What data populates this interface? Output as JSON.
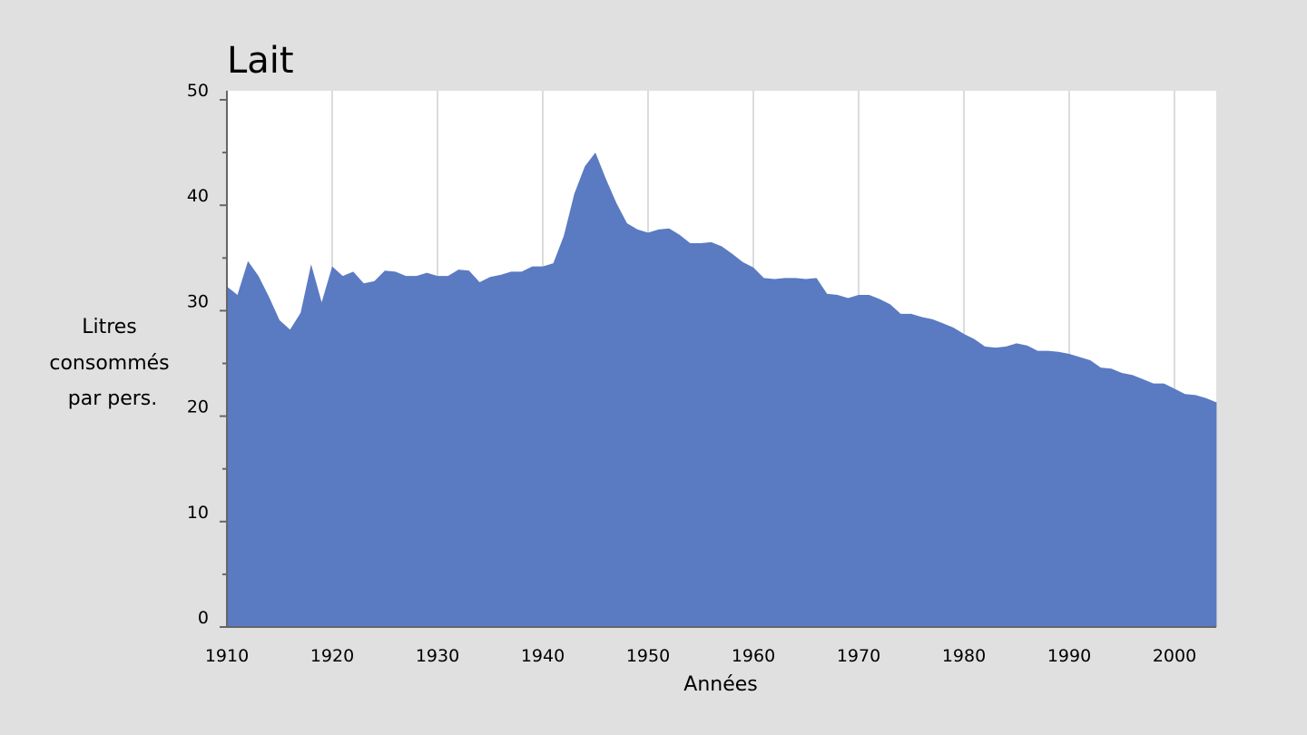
{
  "chart_data": {
    "type": "area",
    "title": "Lait",
    "xlabel": "Années",
    "ylabel_lines": [
      "Litres",
      "consommés",
      "par pers."
    ],
    "xlim": [
      1910,
      2004
    ],
    "ylim": [
      0,
      50
    ],
    "x_ticks": [
      1910,
      1920,
      1930,
      1940,
      1950,
      1960,
      1970,
      1980,
      1990,
      2000
    ],
    "y_ticks": [
      0,
      10,
      20,
      30,
      40,
      50
    ],
    "grid": "vertical",
    "colors": {
      "background": "#e0e0e0",
      "plot": "#ffffff",
      "fill": "#5a7ac2",
      "grid": "#dcdcdc",
      "axis": "#666666"
    },
    "series": [
      {
        "x": [
          1910,
          1911,
          1912,
          1913,
          1914,
          1915,
          1916,
          1917,
          1918,
          1919,
          1920,
          1921,
          1922,
          1923,
          1924,
          1925,
          1926,
          1927,
          1928,
          1929,
          1930,
          1931,
          1932,
          1933,
          1934,
          1935,
          1936,
          1937,
          1938,
          1939,
          1940,
          1941,
          1942,
          1943,
          1944,
          1945,
          1946,
          1947,
          1948,
          1949,
          1950,
          1951,
          1952,
          1953,
          1954,
          1955,
          1956,
          1957,
          1958,
          1959,
          1960,
          1961,
          1962,
          1963,
          1964,
          1965,
          1966,
          1967,
          1968,
          1969,
          1970,
          1971,
          1972,
          1973,
          1974,
          1975,
          1976,
          1977,
          1978,
          1979,
          1980,
          1981,
          1982,
          1983,
          1984,
          1985,
          1986,
          1987,
          1988,
          1989,
          1990,
          1991,
          1992,
          1993,
          1994,
          1995,
          1996,
          1997,
          1998,
          1999,
          2000,
          2001,
          2002,
          2003,
          2004
        ],
        "values": [
          32.3,
          31.5,
          34.7,
          33.3,
          31.3,
          29.1,
          28.2,
          29.8,
          34.4,
          30.8,
          34.2,
          33.3,
          33.7,
          32.6,
          32.8,
          33.8,
          33.7,
          33.3,
          33.3,
          33.6,
          33.3,
          33.3,
          33.9,
          33.8,
          32.7,
          33.2,
          33.4,
          33.7,
          33.7,
          34.2,
          34.2,
          34.5,
          37.1,
          41.1,
          43.7,
          45.0,
          42.5,
          40.2,
          38.3,
          37.7,
          37.4,
          37.7,
          37.8,
          37.2,
          36.4,
          36.4,
          36.5,
          36.1,
          35.4,
          34.6,
          34.1,
          33.1,
          33.0,
          33.1,
          33.1,
          33.0,
          33.1,
          31.6,
          31.5,
          31.2,
          31.5,
          31.5,
          31.1,
          30.6,
          29.7,
          29.7,
          29.4,
          29.2,
          28.8,
          28.4,
          27.8,
          27.3,
          26.6,
          26.5,
          26.6,
          26.9,
          26.7,
          26.2,
          26.2,
          26.1,
          25.9,
          25.6,
          25.3,
          24.6,
          24.5,
          24.1,
          23.9,
          23.5,
          23.1,
          23.1,
          22.6,
          22.1,
          22.0,
          21.7,
          21.3
        ]
      }
    ]
  }
}
